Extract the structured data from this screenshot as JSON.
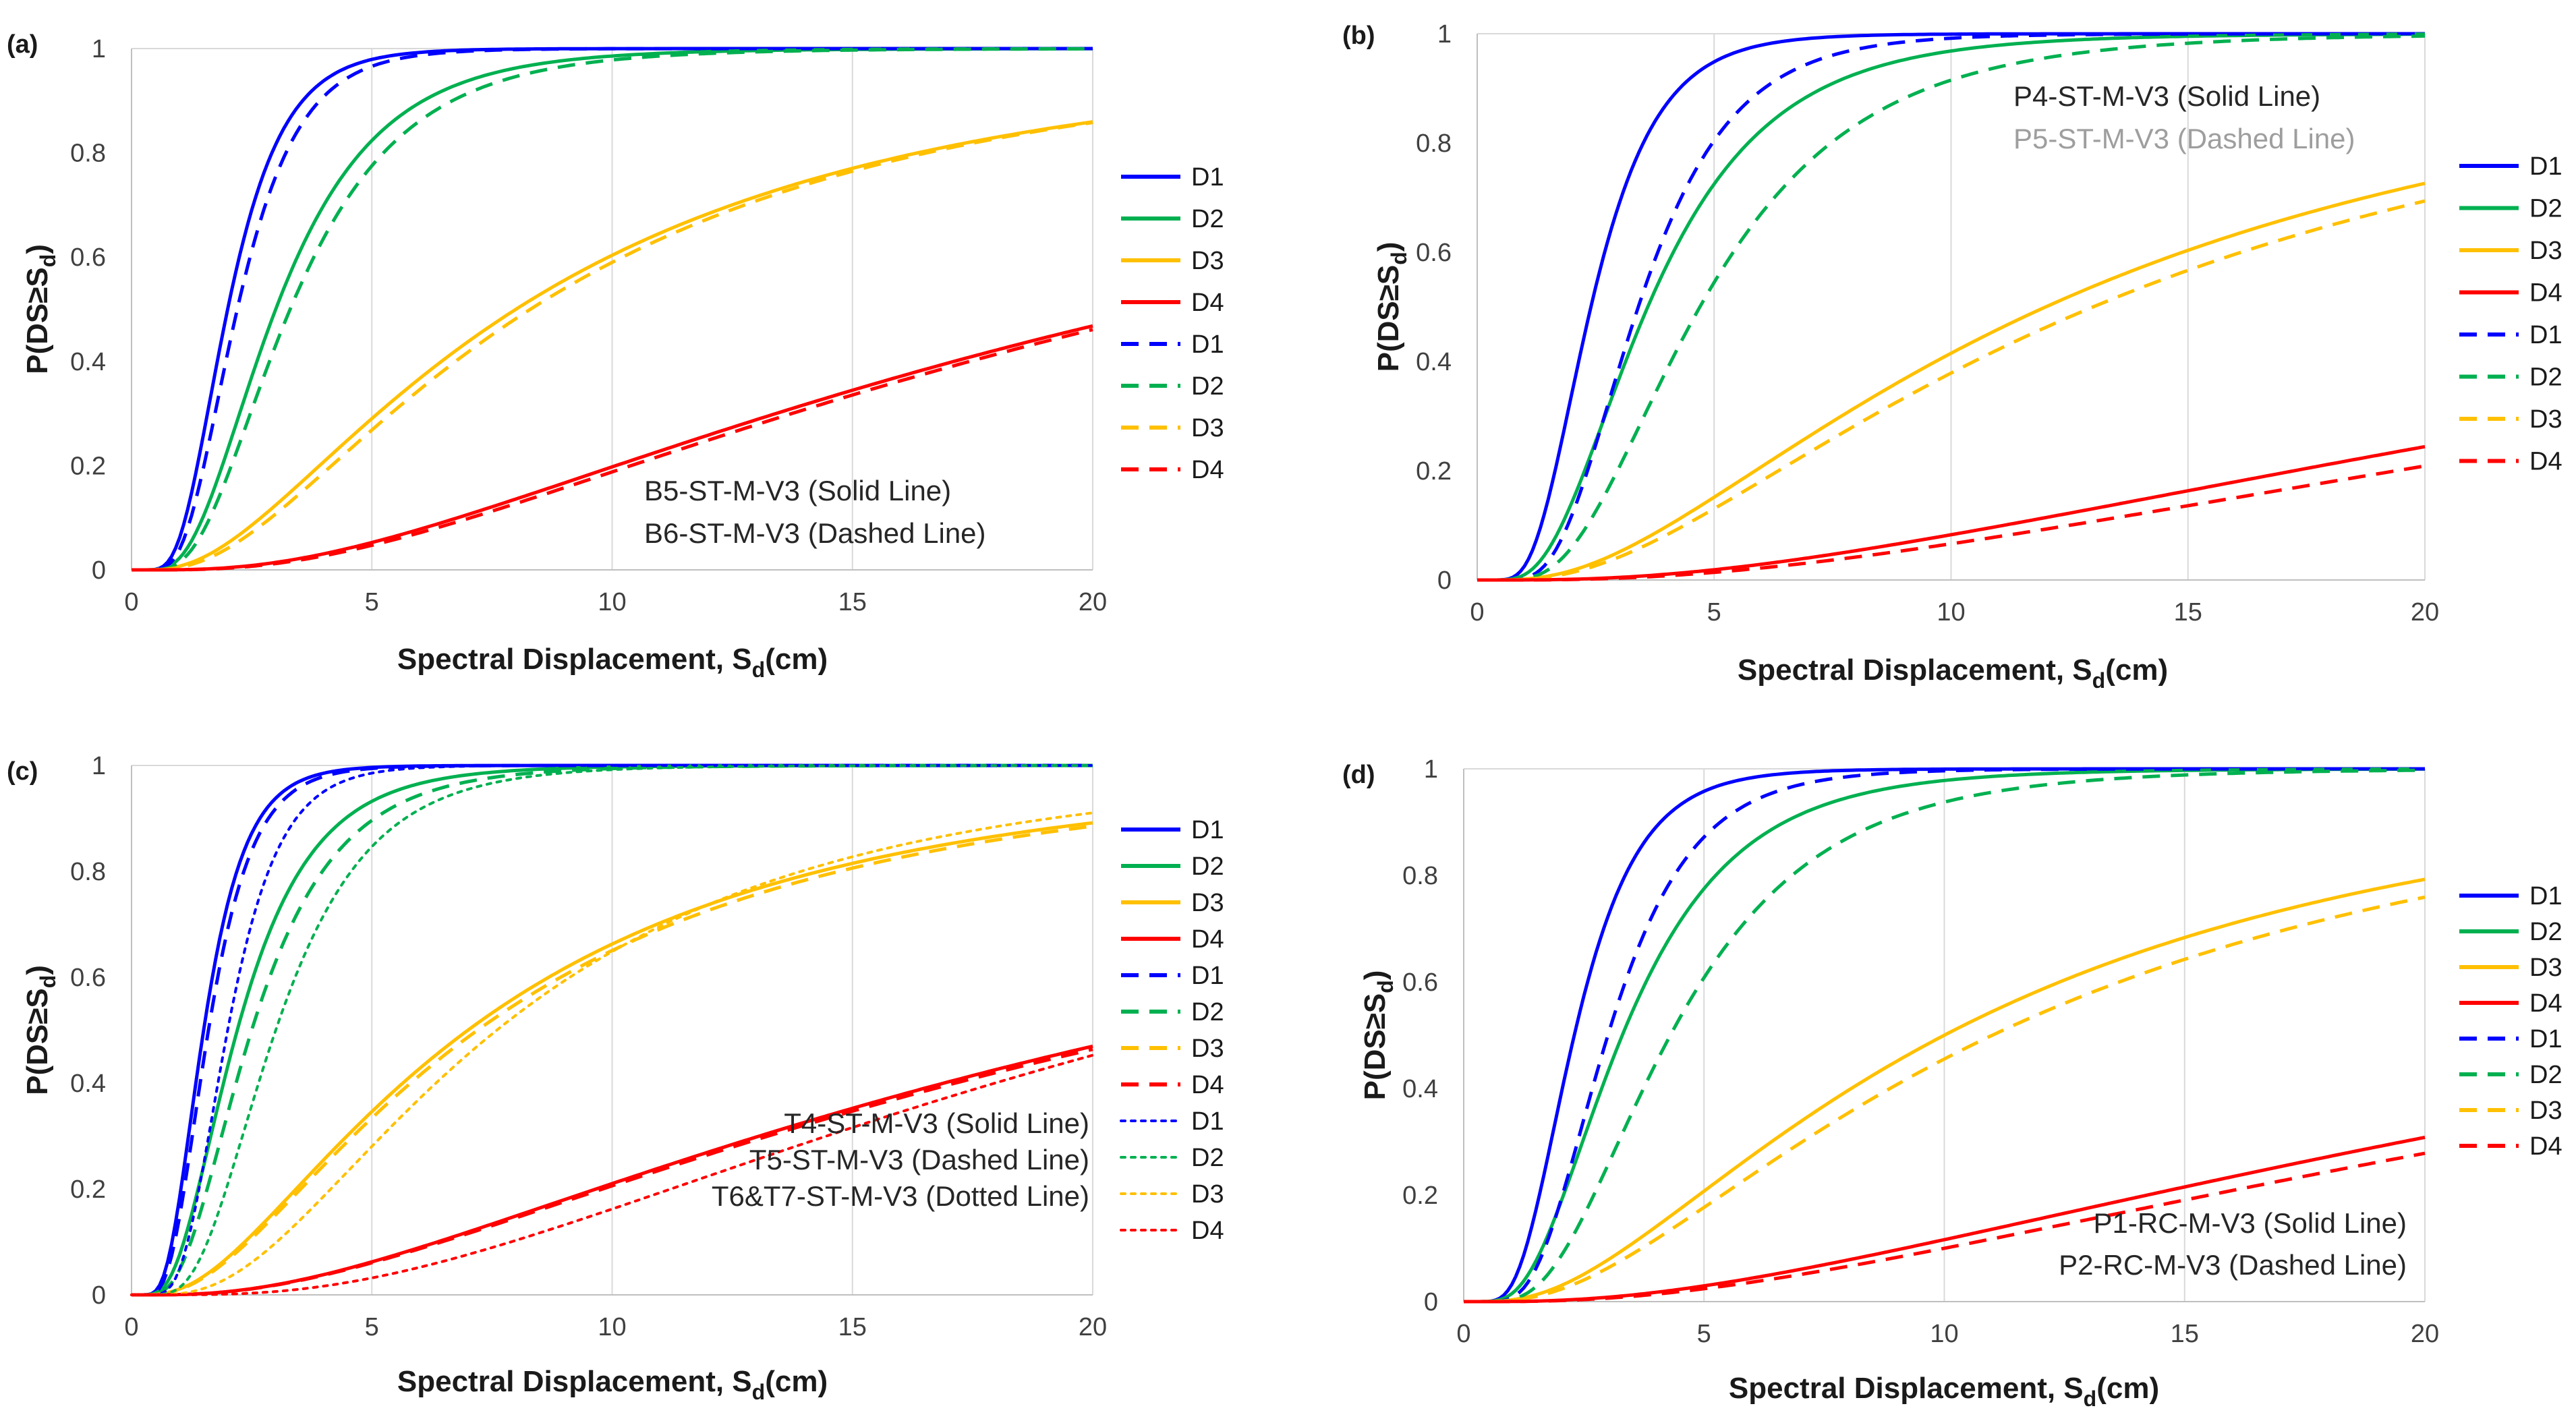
{
  "chart_data": [
    {
      "panel_label": "(a)",
      "type": "line",
      "xlabel": "Spectral Displacement, S_d(cm)",
      "ylabel": "P(DS≥S_d)",
      "xlim": [
        0,
        20
      ],
      "ylim": [
        0,
        1
      ],
      "xticks": [
        0,
        5,
        10,
        15,
        20
      ],
      "yticks": [
        0,
        0.2,
        0.4,
        0.6,
        0.8,
        1
      ],
      "ytick_labels": [
        "0",
        "0.2",
        "0.4",
        "0.6",
        "0.8",
        "1"
      ],
      "grid": "vertical",
      "legend": "right",
      "annotations": [
        {
          "text": "B5-ST-M-V3 (Solid Line)",
          "color": "#262626"
        },
        {
          "text": "B6-ST-M-V3 (Dashed Line)",
          "color": "#262626"
        }
      ],
      "series": [
        {
          "name": "D1",
          "style": "solid",
          "color": "#0000ff",
          "median": 2.0,
          "beta": 0.45
        },
        {
          "name": "D2",
          "style": "solid",
          "color": "#00b050",
          "median": 3.0,
          "beta": 0.55
        },
        {
          "name": "D3",
          "style": "solid",
          "color": "#ffc000",
          "median": 8.0,
          "beta": 0.85
        },
        {
          "name": "D4",
          "style": "solid",
          "color": "#ff0000",
          "median": 21.5,
          "beta": 0.9
        },
        {
          "name": "D1",
          "style": "dashed",
          "color": "#0000ff",
          "median": 2.2,
          "beta": 0.45
        },
        {
          "name": "D2",
          "style": "dashed",
          "color": "#00b050",
          "median": 3.3,
          "beta": 0.55
        },
        {
          "name": "D3",
          "style": "dashed",
          "color": "#ffc000",
          "median": 8.3,
          "beta": 0.82
        },
        {
          "name": "D4",
          "style": "dashed",
          "color": "#ff0000",
          "median": 21.8,
          "beta": 0.88
        }
      ]
    },
    {
      "panel_label": "(b)",
      "type": "line",
      "xlabel": "Spectral Displacement, S_d(cm)",
      "ylabel": "P(DS≥S_d)",
      "xlim": [
        0,
        20
      ],
      "ylim": [
        0,
        1
      ],
      "xticks": [
        0,
        5,
        10,
        15,
        20
      ],
      "yticks": [
        0,
        0.2,
        0.4,
        0.6,
        0.8,
        1
      ],
      "ytick_labels": [
        "0",
        "0.2",
        "0.4",
        "0.6",
        "0.8",
        "1"
      ],
      "grid": "vertical",
      "legend": "right",
      "annotations": [
        {
          "text": "P4-ST-M-V3 (Solid Line)",
          "color": "#262626"
        },
        {
          "text": "P5-ST-M-V3 (Dashed Line)",
          "color": "#9e9e9e"
        }
      ],
      "series": [
        {
          "name": "D1",
          "style": "solid",
          "color": "#0000ff",
          "median": 2.4,
          "beta": 0.45
        },
        {
          "name": "D2",
          "style": "solid",
          "color": "#00b050",
          "median": 3.6,
          "beta": 0.55
        },
        {
          "name": "D3",
          "style": "solid",
          "color": "#ffc000",
          "median": 12.0,
          "beta": 0.85
        },
        {
          "name": "D4",
          "style": "solid",
          "color": "#ff0000",
          "median": 40.0,
          "beta": 1.0
        },
        {
          "name": "D1",
          "style": "dashed",
          "color": "#0000ff",
          "median": 3.4,
          "beta": 0.45
        },
        {
          "name": "D2",
          "style": "dashed",
          "color": "#00b050",
          "median": 4.7,
          "beta": 0.55
        },
        {
          "name": "D3",
          "style": "dashed",
          "color": "#ffc000",
          "median": 13.0,
          "beta": 0.85
        },
        {
          "name": "D4",
          "style": "dashed",
          "color": "#ff0000",
          "median": 45.0,
          "beta": 1.0
        }
      ]
    },
    {
      "panel_label": "(c)",
      "type": "line",
      "xlabel": "Spectral Displacement, S_d(cm)",
      "ylabel": "P(DS≥S_d)",
      "xlim": [
        0,
        20
      ],
      "ylim": [
        0,
        1
      ],
      "xticks": [
        0,
        5,
        10,
        15,
        20
      ],
      "yticks": [
        0,
        0.2,
        0.4,
        0.6,
        0.8,
        1
      ],
      "ytick_labels": [
        "0",
        "0.2",
        "0.4",
        "0.6",
        "0.8",
        "1"
      ],
      "grid": "vertical",
      "legend": "right",
      "annotations": [
        {
          "text": "T4-ST-M-V3 (Solid Line)",
          "color": "#262626"
        },
        {
          "text": "T5-ST-M-V3 (Dashed Line)",
          "color": "#262626"
        },
        {
          "text": "T6&T7-ST-M-V3 (Dotted Line)",
          "color": "#262626"
        }
      ],
      "series": [
        {
          "name": "D1",
          "style": "solid",
          "color": "#0000ff",
          "median": 1.5,
          "beta": 0.45
        },
        {
          "name": "D2",
          "style": "solid",
          "color": "#00b050",
          "median": 2.2,
          "beta": 0.55
        },
        {
          "name": "D3",
          "style": "solid",
          "color": "#ffc000",
          "median": 7.0,
          "beta": 0.85
        },
        {
          "name": "D4",
          "style": "solid",
          "color": "#ff0000",
          "median": 21.5,
          "beta": 0.95
        },
        {
          "name": "D1",
          "style": "dashed",
          "color": "#0000ff",
          "median": 1.6,
          "beta": 0.45
        },
        {
          "name": "D2",
          "style": "dashed",
          "color": "#00b050",
          "median": 2.5,
          "beta": 0.55
        },
        {
          "name": "D3",
          "style": "dashed",
          "color": "#ffc000",
          "median": 7.2,
          "beta": 0.85
        },
        {
          "name": "D4",
          "style": "dashed",
          "color": "#ff0000",
          "median": 21.8,
          "beta": 0.95
        },
        {
          "name": "D1",
          "style": "dotted",
          "color": "#0000ff",
          "median": 2.0,
          "beta": 0.42
        },
        {
          "name": "D2",
          "style": "dotted",
          "color": "#00b050",
          "median": 3.0,
          "beta": 0.5
        },
        {
          "name": "D3",
          "style": "dotted",
          "color": "#ffc000",
          "median": 7.6,
          "beta": 0.72
        },
        {
          "name": "D4",
          "style": "dotted",
          "color": "#ff0000",
          "median": 22.0,
          "beta": 0.8
        }
      ]
    },
    {
      "panel_label": "(d)",
      "type": "line",
      "xlabel": "Spectral Displacement, S_d(cm)",
      "ylabel": "P(DS≥S_d)",
      "xlim": [
        0,
        20
      ],
      "ylim": [
        0,
        1
      ],
      "xticks": [
        0,
        5,
        10,
        15,
        20
      ],
      "yticks": [
        0,
        0.2,
        0.4,
        0.6,
        0.8,
        1
      ],
      "ytick_labels": [
        "0",
        "0.2",
        "0.4",
        "0.6",
        "0.8",
        "1"
      ],
      "grid": "vertical",
      "legend": "right",
      "annotations": [
        {
          "text": "P1-RC-M-V3 (Solid Line)",
          "color": "#262626"
        },
        {
          "text": "P2-RC-M-V3 (Dashed Line)",
          "color": "#262626"
        }
      ],
      "series": [
        {
          "name": "D1",
          "style": "solid",
          "color": "#0000ff",
          "median": 2.3,
          "beta": 0.45
        },
        {
          "name": "D2",
          "style": "solid",
          "color": "#00b050",
          "median": 3.3,
          "beta": 0.55
        },
        {
          "name": "D3",
          "style": "solid",
          "color": "#ffc000",
          "median": 10.0,
          "beta": 0.85
        },
        {
          "name": "D4",
          "style": "solid",
          "color": "#ff0000",
          "median": 33.0,
          "beta": 1.0
        },
        {
          "name": "D1",
          "style": "dashed",
          "color": "#0000ff",
          "median": 3.0,
          "beta": 0.45
        },
        {
          "name": "D2",
          "style": "dashed",
          "color": "#00b050",
          "median": 4.3,
          "beta": 0.55
        },
        {
          "name": "D3",
          "style": "dashed",
          "color": "#ffc000",
          "median": 11.0,
          "beta": 0.85
        },
        {
          "name": "D4",
          "style": "dashed",
          "color": "#ff0000",
          "median": 36.0,
          "beta": 1.0
        }
      ]
    }
  ]
}
